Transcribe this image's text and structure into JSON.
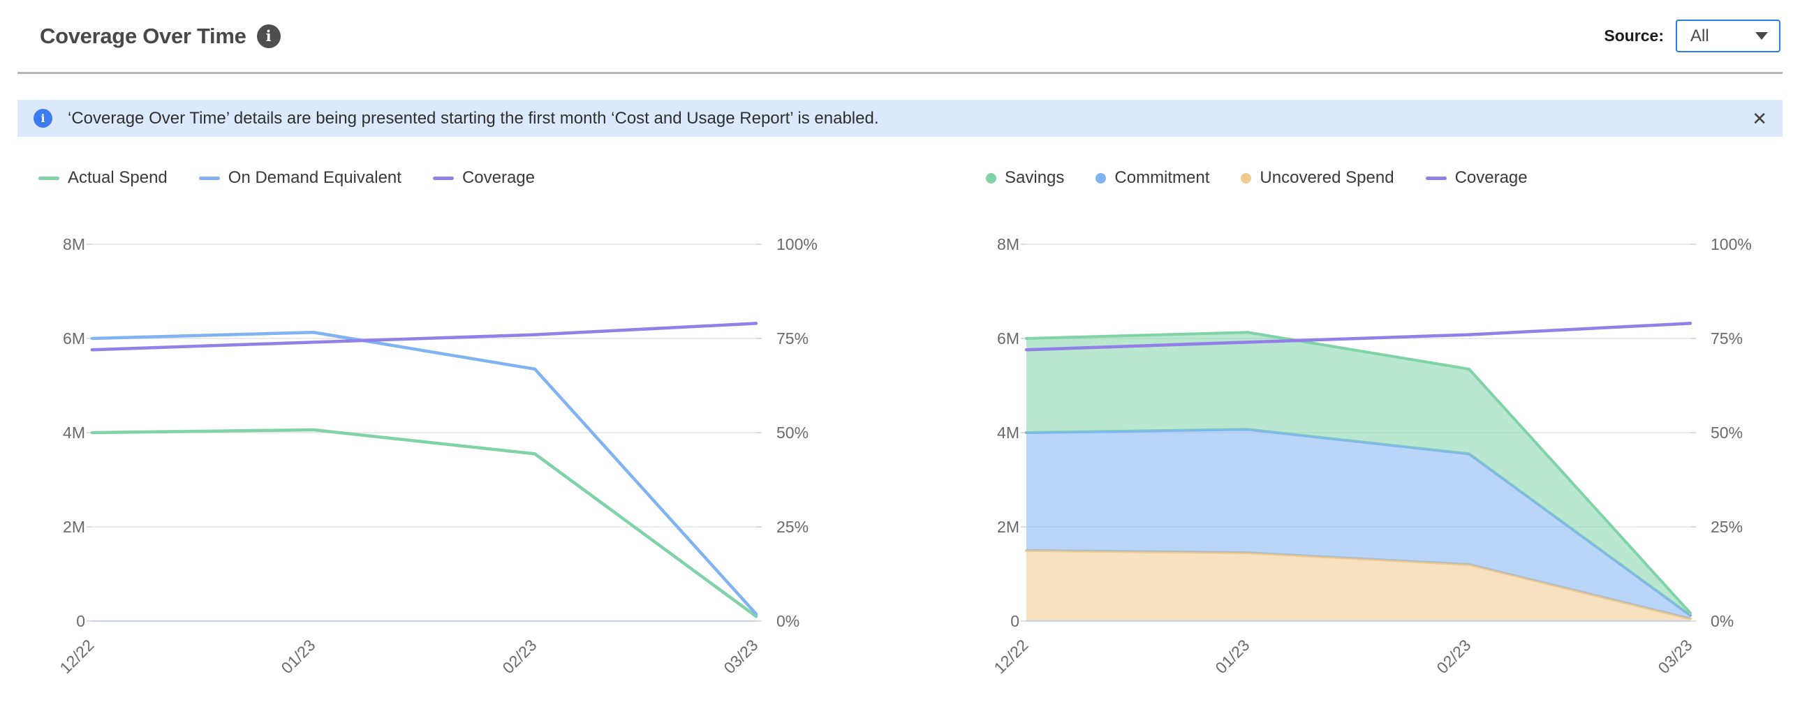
{
  "header": {
    "title": "Coverage Over Time",
    "info_glyph": "i",
    "source_label": "Source:",
    "source_value": "All"
  },
  "banner": {
    "info_glyph": "i",
    "text": "‘Coverage Over Time’ details are being presented starting the first month ‘Cost and Usage Report’ is enabled.",
    "close_glyph": "✕"
  },
  "colors": {
    "actual_spend_green": "#7fd3a7",
    "on_demand_blue": "#7fb3f2",
    "coverage_purple": "#9180e8",
    "uncovered_orange": "#f0c98d",
    "gridline": "#e3e3e3",
    "zero_axis": "#c7d1e8",
    "banner_bg": "#dce9fc",
    "banner_icon_blue": "#3d7bf0",
    "dropdown_border_blue": "#2a7de1"
  },
  "legends": {
    "left": [
      {
        "label": "Actual Spend",
        "marker": "dash",
        "color": "#7fd3a7"
      },
      {
        "label": "On Demand Equivalent",
        "marker": "dash",
        "color": "#7fb3f2"
      },
      {
        "label": "Coverage",
        "marker": "dash",
        "color": "#9180e8"
      }
    ],
    "right": [
      {
        "label": "Savings",
        "marker": "dot",
        "color": "#7fd3a7"
      },
      {
        "label": "Commitment",
        "marker": "dot",
        "color": "#7fb3f2"
      },
      {
        "label": "Uncovered Spend",
        "marker": "dot",
        "color": "#f0c98d"
      },
      {
        "label": "Coverage",
        "marker": "dash",
        "color": "#9180e8"
      }
    ]
  },
  "chart_data": [
    {
      "name": "spend-lines",
      "type": "line",
      "categories": [
        "12/22",
        "01/23",
        "02/23",
        "03/23"
      ],
      "ylim_left": [
        0,
        8000000
      ],
      "yticks_left": [
        "0",
        "2M",
        "4M",
        "6M",
        "8M"
      ],
      "ylim_right": [
        0,
        100
      ],
      "yticks_right": [
        "0%",
        "25%",
        "50%",
        "75%",
        "100%"
      ],
      "grid": true,
      "legend_position": "top-left",
      "series": [
        {
          "name": "Actual Spend",
          "kind": "line",
          "axis": "left",
          "color": "#7fd3a7",
          "values": [
            4000000,
            4060000,
            3550000,
            100000
          ]
        },
        {
          "name": "On Demand Equivalent",
          "kind": "line",
          "axis": "left",
          "color": "#7fb3f2",
          "values": [
            6000000,
            6130000,
            5350000,
            150000
          ]
        },
        {
          "name": "Coverage",
          "kind": "line",
          "axis": "right",
          "color": "#9180e8",
          "values": [
            72,
            74,
            76,
            79
          ]
        }
      ]
    },
    {
      "name": "coverage-areas",
      "type": "area",
      "categories": [
        "12/22",
        "01/23",
        "02/23",
        "03/23"
      ],
      "ylim_left": [
        0,
        8000000
      ],
      "yticks_left": [
        "0",
        "2M",
        "4M",
        "6M",
        "8M"
      ],
      "ylim_right": [
        0,
        100
      ],
      "yticks_right": [
        "0%",
        "25%",
        "50%",
        "75%",
        "100%"
      ],
      "grid": true,
      "legend_position": "top-left",
      "series": [
        {
          "name": "Uncovered Spend",
          "kind": "area",
          "axis": "left",
          "color": "#f0c98d",
          "values": [
            1500000,
            1450000,
            1200000,
            50000
          ]
        },
        {
          "name": "Commitment",
          "kind": "area",
          "axis": "left",
          "color": "#7fb3f2",
          "values": [
            2500000,
            2620000,
            2350000,
            70000
          ]
        },
        {
          "name": "Savings",
          "kind": "area",
          "axis": "left",
          "color": "#7fd3a7",
          "values": [
            2000000,
            2060000,
            1800000,
            50000
          ]
        },
        {
          "name": "Coverage",
          "kind": "line",
          "axis": "right",
          "color": "#9180e8",
          "values": [
            72,
            74,
            76,
            79
          ]
        }
      ]
    }
  ]
}
